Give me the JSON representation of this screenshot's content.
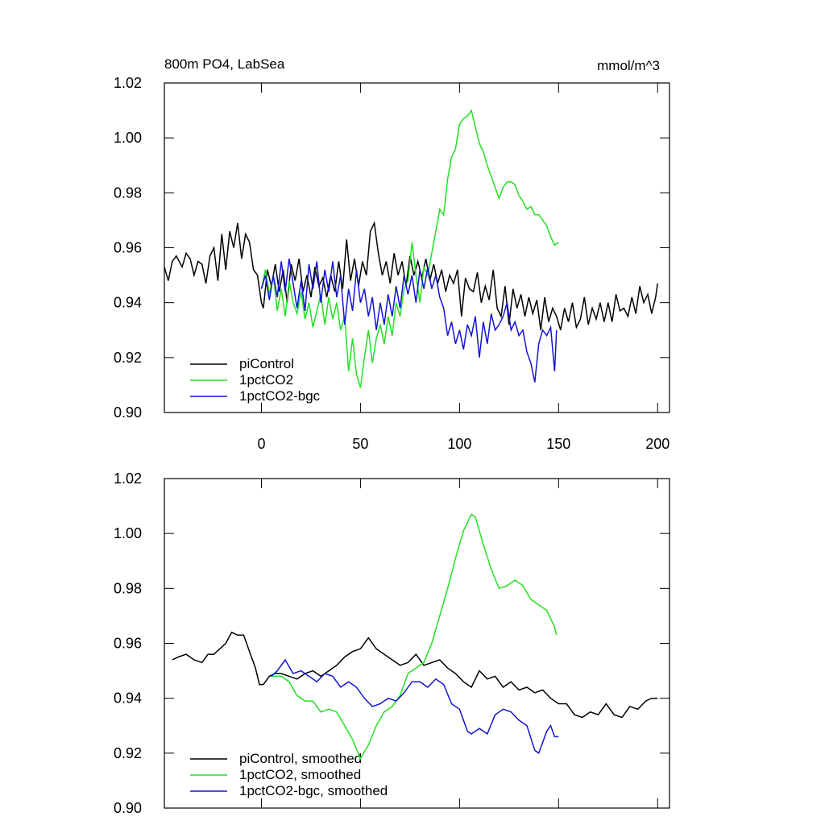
{
  "chart_data": [
    {
      "type": "line",
      "title": "800m PO4, LabSea",
      "units_label": "mmol/m^3",
      "xlim": [
        -49,
        206
      ],
      "xticks": [
        0,
        50,
        100,
        150,
        200
      ],
      "xtick_labels": true,
      "ylim": [
        0.9,
        1.02
      ],
      "yticks": [
        {
          "value": 0.9,
          "label": "0.90"
        },
        0.92,
        0.94,
        0.96,
        0.98,
        {
          "value": 1.0,
          "label": "1.00"
        },
        1.02
      ],
      "legend": "lower left",
      "series": [
        {
          "name": "piControl",
          "color": "#000000",
          "x": [
            -49,
            -47,
            -45,
            -43,
            -40,
            -38,
            -36,
            -34,
            -32,
            -30,
            -28,
            -26,
            -24,
            -22,
            -20,
            -18,
            -16,
            -14,
            -12,
            -10,
            -8,
            -6,
            -4,
            -2,
            0,
            1,
            3,
            5,
            7,
            9,
            11,
            13,
            15,
            17,
            19,
            21,
            23,
            25,
            27,
            29,
            31,
            33,
            35,
            37,
            39,
            41,
            43,
            45,
            47,
            49,
            51,
            53,
            55,
            57,
            59,
            61,
            63,
            65,
            67,
            69,
            71,
            73,
            75,
            77,
            79,
            81,
            83,
            85,
            87,
            89,
            91,
            93,
            95,
            97,
            99,
            101,
            103,
            105,
            107,
            109,
            111,
            113,
            115,
            117,
            119,
            121,
            123,
            125,
            127,
            129,
            131,
            133,
            135,
            137,
            139,
            141,
            143,
            145,
            147,
            149,
            151,
            153,
            155,
            157,
            159,
            161,
            163,
            165,
            167,
            169,
            171,
            173,
            175,
            177,
            179,
            181,
            183,
            185,
            187,
            189,
            191,
            193,
            195,
            197,
            199,
            200
          ],
          "values": [
            0.953,
            0.948,
            0.955,
            0.957,
            0.953,
            0.958,
            0.956,
            0.95,
            0.955,
            0.954,
            0.947,
            0.957,
            0.96,
            0.948,
            0.965,
            0.952,
            0.966,
            0.96,
            0.969,
            0.956,
            0.965,
            0.962,
            0.952,
            0.95,
            0.94,
            0.938,
            0.952,
            0.946,
            0.954,
            0.944,
            0.952,
            0.94,
            0.954,
            0.948,
            0.956,
            0.944,
            0.95,
            0.942,
            0.953,
            0.946,
            0.949,
            0.942,
            0.95,
            0.944,
            0.955,
            0.945,
            0.963,
            0.948,
            0.956,
            0.946,
            0.955,
            0.95,
            0.966,
            0.969,
            0.958,
            0.95,
            0.955,
            0.947,
            0.958,
            0.95,
            0.955,
            0.946,
            0.957,
            0.95,
            0.955,
            0.949,
            0.956,
            0.948,
            0.954,
            0.947,
            0.952,
            0.944,
            0.95,
            0.947,
            0.952,
            0.935,
            0.949,
            0.945,
            0.944,
            0.951,
            0.94,
            0.946,
            0.941,
            0.952,
            0.938,
            0.935,
            0.946,
            0.932,
            0.945,
            0.938,
            0.943,
            0.935,
            0.942,
            0.936,
            0.941,
            0.93,
            0.942,
            0.933,
            0.938,
            0.935,
            0.93,
            0.938,
            0.933,
            0.94,
            0.931,
            0.934,
            0.942,
            0.932,
            0.938,
            0.934,
            0.94,
            0.933,
            0.94,
            0.933,
            0.943,
            0.937,
            0.938,
            0.935,
            0.942,
            0.936,
            0.946,
            0.94,
            0.943,
            0.936,
            0.942,
            0.947
          ]
        },
        {
          "name": "1pctCO2",
          "color": "#22e022",
          "x": [
            0,
            2,
            4,
            6,
            8,
            10,
            12,
            14,
            16,
            18,
            20,
            22,
            24,
            26,
            28,
            30,
            32,
            34,
            36,
            38,
            40,
            42,
            44,
            46,
            48,
            50,
            52,
            54,
            56,
            58,
            60,
            62,
            64,
            66,
            68,
            70,
            72,
            74,
            76,
            78,
            80,
            82,
            84,
            86,
            88,
            90,
            92,
            94,
            96,
            98,
            100,
            102,
            104,
            106,
            108,
            110,
            112,
            114,
            116,
            118,
            120,
            122,
            124,
            126,
            128,
            130,
            132,
            134,
            136,
            138,
            140,
            142,
            144,
            146,
            148,
            150
          ],
          "values": [
            0.945,
            0.952,
            0.943,
            0.95,
            0.937,
            0.945,
            0.935,
            0.948,
            0.94,
            0.936,
            0.944,
            0.934,
            0.94,
            0.931,
            0.937,
            0.943,
            0.932,
            0.942,
            0.934,
            0.94,
            0.93,
            0.935,
            0.915,
            0.927,
            0.914,
            0.909,
            0.92,
            0.93,
            0.918,
            0.927,
            0.932,
            0.925,
            0.935,
            0.928,
            0.94,
            0.935,
            0.945,
            0.948,
            0.962,
            0.95,
            0.94,
            0.953,
            0.95,
            0.958,
            0.966,
            0.974,
            0.972,
            0.985,
            0.993,
            0.996,
            1.005,
            1.007,
            1.008,
            1.01,
            1.004,
            0.998,
            0.995,
            0.99,
            0.986,
            0.982,
            0.978,
            0.982,
            0.984,
            0.984,
            0.983,
            0.979,
            0.977,
            0.974,
            0.975,
            0.972,
            0.972,
            0.97,
            0.968,
            0.964,
            0.961,
            0.962
          ]
        },
        {
          "name": "1pctCO2-bgc",
          "color": "#1414d2",
          "x": [
            0,
            2,
            4,
            6,
            8,
            10,
            12,
            14,
            16,
            18,
            20,
            22,
            24,
            26,
            28,
            30,
            32,
            34,
            36,
            38,
            40,
            42,
            44,
            46,
            48,
            50,
            52,
            54,
            56,
            58,
            60,
            62,
            64,
            66,
            68,
            70,
            72,
            74,
            76,
            78,
            80,
            82,
            84,
            86,
            88,
            90,
            92,
            94,
            96,
            98,
            100,
            102,
            104,
            106,
            108,
            110,
            112,
            114,
            116,
            118,
            120,
            122,
            124,
            126,
            128,
            130,
            132,
            134,
            136,
            138,
            140,
            142,
            144,
            146,
            148,
            149
          ],
          "values": [
            0.945,
            0.95,
            0.941,
            0.95,
            0.942,
            0.955,
            0.944,
            0.956,
            0.947,
            0.938,
            0.948,
            0.937,
            0.954,
            0.945,
            0.955,
            0.94,
            0.952,
            0.944,
            0.955,
            0.942,
            0.95,
            0.932,
            0.945,
            0.937,
            0.952,
            0.94,
            0.945,
            0.935,
            0.942,
            0.93,
            0.94,
            0.932,
            0.943,
            0.935,
            0.946,
            0.938,
            0.95,
            0.943,
            0.95,
            0.94,
            0.952,
            0.945,
            0.953,
            0.945,
            0.95,
            0.942,
            0.938,
            0.928,
            0.933,
            0.925,
            0.93,
            0.923,
            0.932,
            0.928,
            0.935,
            0.92,
            0.933,
            0.925,
            0.936,
            0.93,
            0.932,
            0.935,
            0.94,
            0.93,
            0.933,
            0.928,
            0.93,
            0.922,
            0.918,
            0.911,
            0.925,
            0.93,
            0.928,
            0.931,
            0.915,
            0.93
          ]
        }
      ]
    },
    {
      "type": "line",
      "xlim": [
        -49,
        206
      ],
      "xticks": [
        0,
        50,
        100,
        150,
        200
      ],
      "xtick_labels": false,
      "ylim": [
        0.9,
        1.02
      ],
      "yticks": [
        {
          "value": 0.9,
          "label": "0.90"
        },
        0.92,
        0.94,
        0.96,
        0.98,
        {
          "value": 1.0,
          "label": "1.00"
        },
        1.02
      ],
      "legend": "lower left",
      "series": [
        {
          "name": "piControl, smoothed",
          "color": "#000000",
          "x": [
            -45,
            -42,
            -38,
            -34,
            -30,
            -27,
            -24,
            -21,
            -18,
            -15,
            -12,
            -9,
            -6,
            -3,
            -1,
            1,
            4,
            7,
            10,
            14,
            18,
            22,
            26,
            30,
            34,
            38,
            42,
            46,
            50,
            54,
            58,
            62,
            66,
            70,
            74,
            78,
            82,
            86,
            90,
            94,
            98,
            102,
            106,
            110,
            114,
            118,
            122,
            126,
            130,
            134,
            138,
            142,
            146,
            150,
            154,
            158,
            162,
            166,
            170,
            174,
            178,
            182,
            186,
            190,
            194,
            197,
            200
          ],
          "values": [
            0.954,
            0.955,
            0.956,
            0.954,
            0.953,
            0.956,
            0.956,
            0.958,
            0.96,
            0.964,
            0.963,
            0.963,
            0.957,
            0.951,
            0.945,
            0.945,
            0.948,
            0.949,
            0.949,
            0.948,
            0.947,
            0.949,
            0.95,
            0.948,
            0.95,
            0.952,
            0.955,
            0.957,
            0.958,
            0.962,
            0.958,
            0.956,
            0.954,
            0.952,
            0.953,
            0.956,
            0.952,
            0.953,
            0.954,
            0.951,
            0.949,
            0.946,
            0.944,
            0.95,
            0.947,
            0.948,
            0.944,
            0.946,
            0.943,
            0.944,
            0.942,
            0.943,
            0.94,
            0.938,
            0.938,
            0.934,
            0.933,
            0.935,
            0.934,
            0.938,
            0.934,
            0.933,
            0.937,
            0.936,
            0.939,
            0.94,
            0.94
          ]
        },
        {
          "name": "1pctCO2, smoothed",
          "color": "#22e022",
          "x": [
            5,
            10,
            14,
            18,
            22,
            26,
            30,
            34,
            38,
            42,
            46,
            50,
            54,
            58,
            62,
            66,
            70,
            74,
            78,
            82,
            86,
            90,
            94,
            98,
            102,
            106,
            108,
            112,
            116,
            120,
            124,
            128,
            132,
            136,
            140,
            144,
            148,
            149
          ],
          "values": [
            0.948,
            0.948,
            0.946,
            0.941,
            0.939,
            0.939,
            0.935,
            0.936,
            0.935,
            0.93,
            0.925,
            0.918,
            0.923,
            0.93,
            0.935,
            0.937,
            0.941,
            0.949,
            0.951,
            0.953,
            0.96,
            0.97,
            0.98,
            0.991,
            1.001,
            1.007,
            1.006,
            0.996,
            0.987,
            0.98,
            0.981,
            0.983,
            0.981,
            0.976,
            0.974,
            0.972,
            0.966,
            0.963
          ]
        },
        {
          "name": "1pctCO2-bgc, smoothed",
          "color": "#1414d2",
          "x": [
            5,
            8,
            12,
            16,
            20,
            24,
            28,
            32,
            36,
            40,
            44,
            48,
            52,
            56,
            60,
            64,
            68,
            72,
            76,
            80,
            84,
            88,
            92,
            96,
            100,
            104,
            106,
            110,
            114,
            118,
            122,
            126,
            130,
            134,
            138,
            140,
            144,
            146,
            148,
            150
          ],
          "values": [
            0.948,
            0.95,
            0.954,
            0.949,
            0.95,
            0.948,
            0.946,
            0.949,
            0.948,
            0.944,
            0.946,
            0.944,
            0.94,
            0.937,
            0.938,
            0.94,
            0.939,
            0.942,
            0.946,
            0.946,
            0.944,
            0.947,
            0.945,
            0.938,
            0.936,
            0.928,
            0.927,
            0.929,
            0.927,
            0.934,
            0.936,
            0.935,
            0.932,
            0.93,
            0.921,
            0.92,
            0.928,
            0.93,
            0.926,
            0.926
          ]
        }
      ]
    }
  ]
}
